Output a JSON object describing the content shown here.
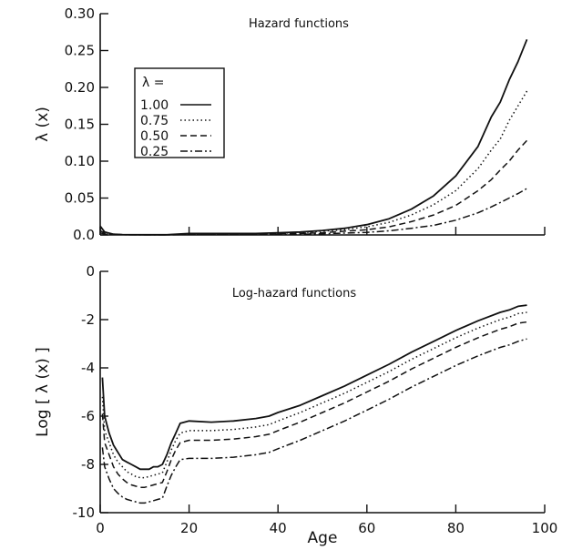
{
  "chart_data": [
    {
      "type": "line",
      "title": "Hazard functions",
      "xlabel": "",
      "ylabel": "λ (x)",
      "xlim": [
        0,
        100
      ],
      "ylim": [
        0,
        0.3
      ],
      "xticks": [
        "",
        "",
        "",
        "",
        "",
        ""
      ],
      "xtick_values": [
        0,
        20,
        40,
        60,
        80,
        100
      ],
      "yticks": [
        "0.0",
        "0.05",
        "0.10",
        "0.15",
        "0.20",
        "0.25",
        "0.30"
      ],
      "ytick_values": [
        0,
        0.05,
        0.1,
        0.15,
        0.2,
        0.25,
        0.3
      ],
      "grid": false,
      "legend": {
        "position": "top-left",
        "title": "λ =",
        "entries": [
          "1.00",
          "0.75",
          "0.50",
          "0.25"
        ]
      },
      "series": [
        {
          "name": "1.00",
          "style": "solid",
          "x": [
            0,
            1,
            3,
            5,
            10,
            15,
            20,
            25,
            30,
            35,
            40,
            45,
            50,
            55,
            60,
            65,
            70,
            75,
            80,
            85,
            88,
            90,
            92,
            94,
            96
          ],
          "y": [
            0.012,
            0.004,
            0.001,
            0.0005,
            0.0003,
            0.0003,
            0.002,
            0.002,
            0.002,
            0.002,
            0.003,
            0.004,
            0.006,
            0.009,
            0.014,
            0.022,
            0.035,
            0.053,
            0.08,
            0.12,
            0.16,
            0.18,
            0.21,
            0.235,
            0.265
          ]
        },
        {
          "name": "0.75",
          "style": "dotted",
          "x": [
            0,
            1,
            3,
            5,
            10,
            15,
            20,
            25,
            30,
            35,
            40,
            45,
            50,
            55,
            60,
            65,
            70,
            75,
            80,
            85,
            88,
            90,
            92,
            94,
            96
          ],
          "y": [
            0.009,
            0.003,
            0.001,
            0.0004,
            0.0003,
            0.0003,
            0.0015,
            0.0015,
            0.0015,
            0.0015,
            0.0025,
            0.003,
            0.005,
            0.007,
            0.011,
            0.017,
            0.027,
            0.041,
            0.06,
            0.09,
            0.115,
            0.13,
            0.155,
            0.175,
            0.195
          ]
        },
        {
          "name": "0.50",
          "style": "dashed",
          "x": [
            0,
            1,
            3,
            5,
            10,
            15,
            20,
            25,
            30,
            35,
            40,
            45,
            50,
            55,
            60,
            65,
            70,
            75,
            80,
            85,
            88,
            90,
            92,
            94,
            96
          ],
          "y": [
            0.006,
            0.002,
            0.0008,
            0.0003,
            0.0002,
            0.0002,
            0.001,
            0.001,
            0.001,
            0.001,
            0.0017,
            0.002,
            0.003,
            0.005,
            0.007,
            0.011,
            0.018,
            0.027,
            0.04,
            0.06,
            0.075,
            0.088,
            0.1,
            0.115,
            0.128
          ]
        },
        {
          "name": "0.25",
          "style": "dashdot",
          "x": [
            0,
            1,
            3,
            5,
            10,
            15,
            20,
            25,
            30,
            35,
            40,
            45,
            50,
            55,
            60,
            65,
            70,
            75,
            80,
            85,
            88,
            90,
            92,
            94,
            96
          ],
          "y": [
            0.003,
            0.001,
            0.0004,
            0.0002,
            0.0001,
            0.0001,
            0.0005,
            0.0005,
            0.0005,
            0.0005,
            0.0008,
            0.001,
            0.0015,
            0.0025,
            0.0035,
            0.0055,
            0.009,
            0.013,
            0.02,
            0.03,
            0.038,
            0.044,
            0.05,
            0.056,
            0.063
          ]
        }
      ]
    },
    {
      "type": "line",
      "title": "Log-hazard functions",
      "xlabel": "Age",
      "ylabel": "Log [ λ (x) ]",
      "xlim": [
        0,
        100
      ],
      "ylim": [
        -10,
        0
      ],
      "xticks": [
        "0",
        "20",
        "40",
        "60",
        "80",
        "100"
      ],
      "xtick_values": [
        0,
        20,
        40,
        60,
        80,
        100
      ],
      "yticks": [
        "-10",
        "-8",
        "-6",
        "-4",
        "-2",
        "0"
      ],
      "ytick_values": [
        -10,
        -8,
        -6,
        -4,
        -2,
        0
      ],
      "grid": false,
      "series": [
        {
          "name": "1.00",
          "style": "solid",
          "x": [
            0.5,
            1,
            2,
            3,
            4,
            5,
            6,
            7,
            8,
            9,
            10,
            11,
            12,
            13,
            14,
            15,
            16,
            17,
            18,
            20,
            25,
            30,
            35,
            38,
            40,
            45,
            50,
            55,
            60,
            65,
            70,
            75,
            80,
            85,
            90,
            92,
            94,
            96
          ],
          "y": [
            -4.4,
            -6.0,
            -6.7,
            -7.2,
            -7.5,
            -7.8,
            -7.9,
            -8.0,
            -8.1,
            -8.2,
            -8.2,
            -8.2,
            -8.1,
            -8.1,
            -8.0,
            -7.6,
            -7.1,
            -6.7,
            -6.3,
            -6.2,
            -6.25,
            -6.2,
            -6.1,
            -6.0,
            -5.85,
            -5.55,
            -5.15,
            -4.75,
            -4.3,
            -3.85,
            -3.35,
            -2.9,
            -2.45,
            -2.05,
            -1.7,
            -1.6,
            -1.45,
            -1.4
          ]
        },
        {
          "name": "0.75",
          "style": "dotted",
          "x": [
            0.5,
            1,
            2,
            3,
            4,
            5,
            6,
            7,
            8,
            9,
            10,
            11,
            12,
            13,
            14,
            15,
            16,
            17,
            18,
            20,
            25,
            30,
            35,
            38,
            40,
            45,
            50,
            55,
            60,
            65,
            70,
            75,
            80,
            85,
            90,
            92,
            94,
            96
          ],
          "y": [
            -5.2,
            -6.6,
            -7.1,
            -7.6,
            -7.9,
            -8.1,
            -8.3,
            -8.4,
            -8.5,
            -8.55,
            -8.55,
            -8.5,
            -8.45,
            -8.4,
            -8.35,
            -7.9,
            -7.4,
            -7.0,
            -6.7,
            -6.6,
            -6.6,
            -6.55,
            -6.45,
            -6.35,
            -6.2,
            -5.85,
            -5.45,
            -5.05,
            -4.6,
            -4.15,
            -3.65,
            -3.2,
            -2.75,
            -2.35,
            -2.0,
            -1.9,
            -1.75,
            -1.7
          ]
        },
        {
          "name": "0.50",
          "style": "dashed",
          "x": [
            0.5,
            1,
            2,
            3,
            4,
            5,
            6,
            7,
            8,
            9,
            10,
            11,
            12,
            13,
            14,
            15,
            16,
            17,
            18,
            20,
            25,
            30,
            35,
            38,
            40,
            45,
            50,
            55,
            60,
            65,
            70,
            75,
            80,
            85,
            90,
            92,
            94,
            96
          ],
          "y": [
            -5.9,
            -7.1,
            -7.6,
            -8.1,
            -8.4,
            -8.6,
            -8.75,
            -8.85,
            -8.9,
            -8.95,
            -8.95,
            -8.9,
            -8.85,
            -8.8,
            -8.75,
            -8.3,
            -7.8,
            -7.4,
            -7.1,
            -7.0,
            -7.0,
            -6.95,
            -6.85,
            -6.75,
            -6.6,
            -6.25,
            -5.85,
            -5.45,
            -5.0,
            -4.55,
            -4.05,
            -3.6,
            -3.15,
            -2.75,
            -2.4,
            -2.3,
            -2.15,
            -2.1
          ]
        },
        {
          "name": "0.25",
          "style": "dashdot",
          "x": [
            0.5,
            1,
            2,
            3,
            4,
            5,
            6,
            7,
            8,
            9,
            10,
            11,
            12,
            13,
            14,
            15,
            16,
            17,
            18,
            20,
            25,
            30,
            35,
            38,
            40,
            45,
            50,
            55,
            60,
            65,
            70,
            75,
            80,
            85,
            90,
            92,
            94,
            96
          ],
          "y": [
            -7.3,
            -8.1,
            -8.6,
            -9.0,
            -9.2,
            -9.35,
            -9.45,
            -9.5,
            -9.55,
            -9.6,
            -9.6,
            -9.55,
            -9.5,
            -9.45,
            -9.4,
            -8.9,
            -8.45,
            -8.1,
            -7.8,
            -7.75,
            -7.75,
            -7.7,
            -7.6,
            -7.5,
            -7.35,
            -7.0,
            -6.6,
            -6.2,
            -5.75,
            -5.3,
            -4.8,
            -4.35,
            -3.9,
            -3.5,
            -3.15,
            -3.05,
            -2.9,
            -2.8
          ]
        }
      ]
    }
  ]
}
